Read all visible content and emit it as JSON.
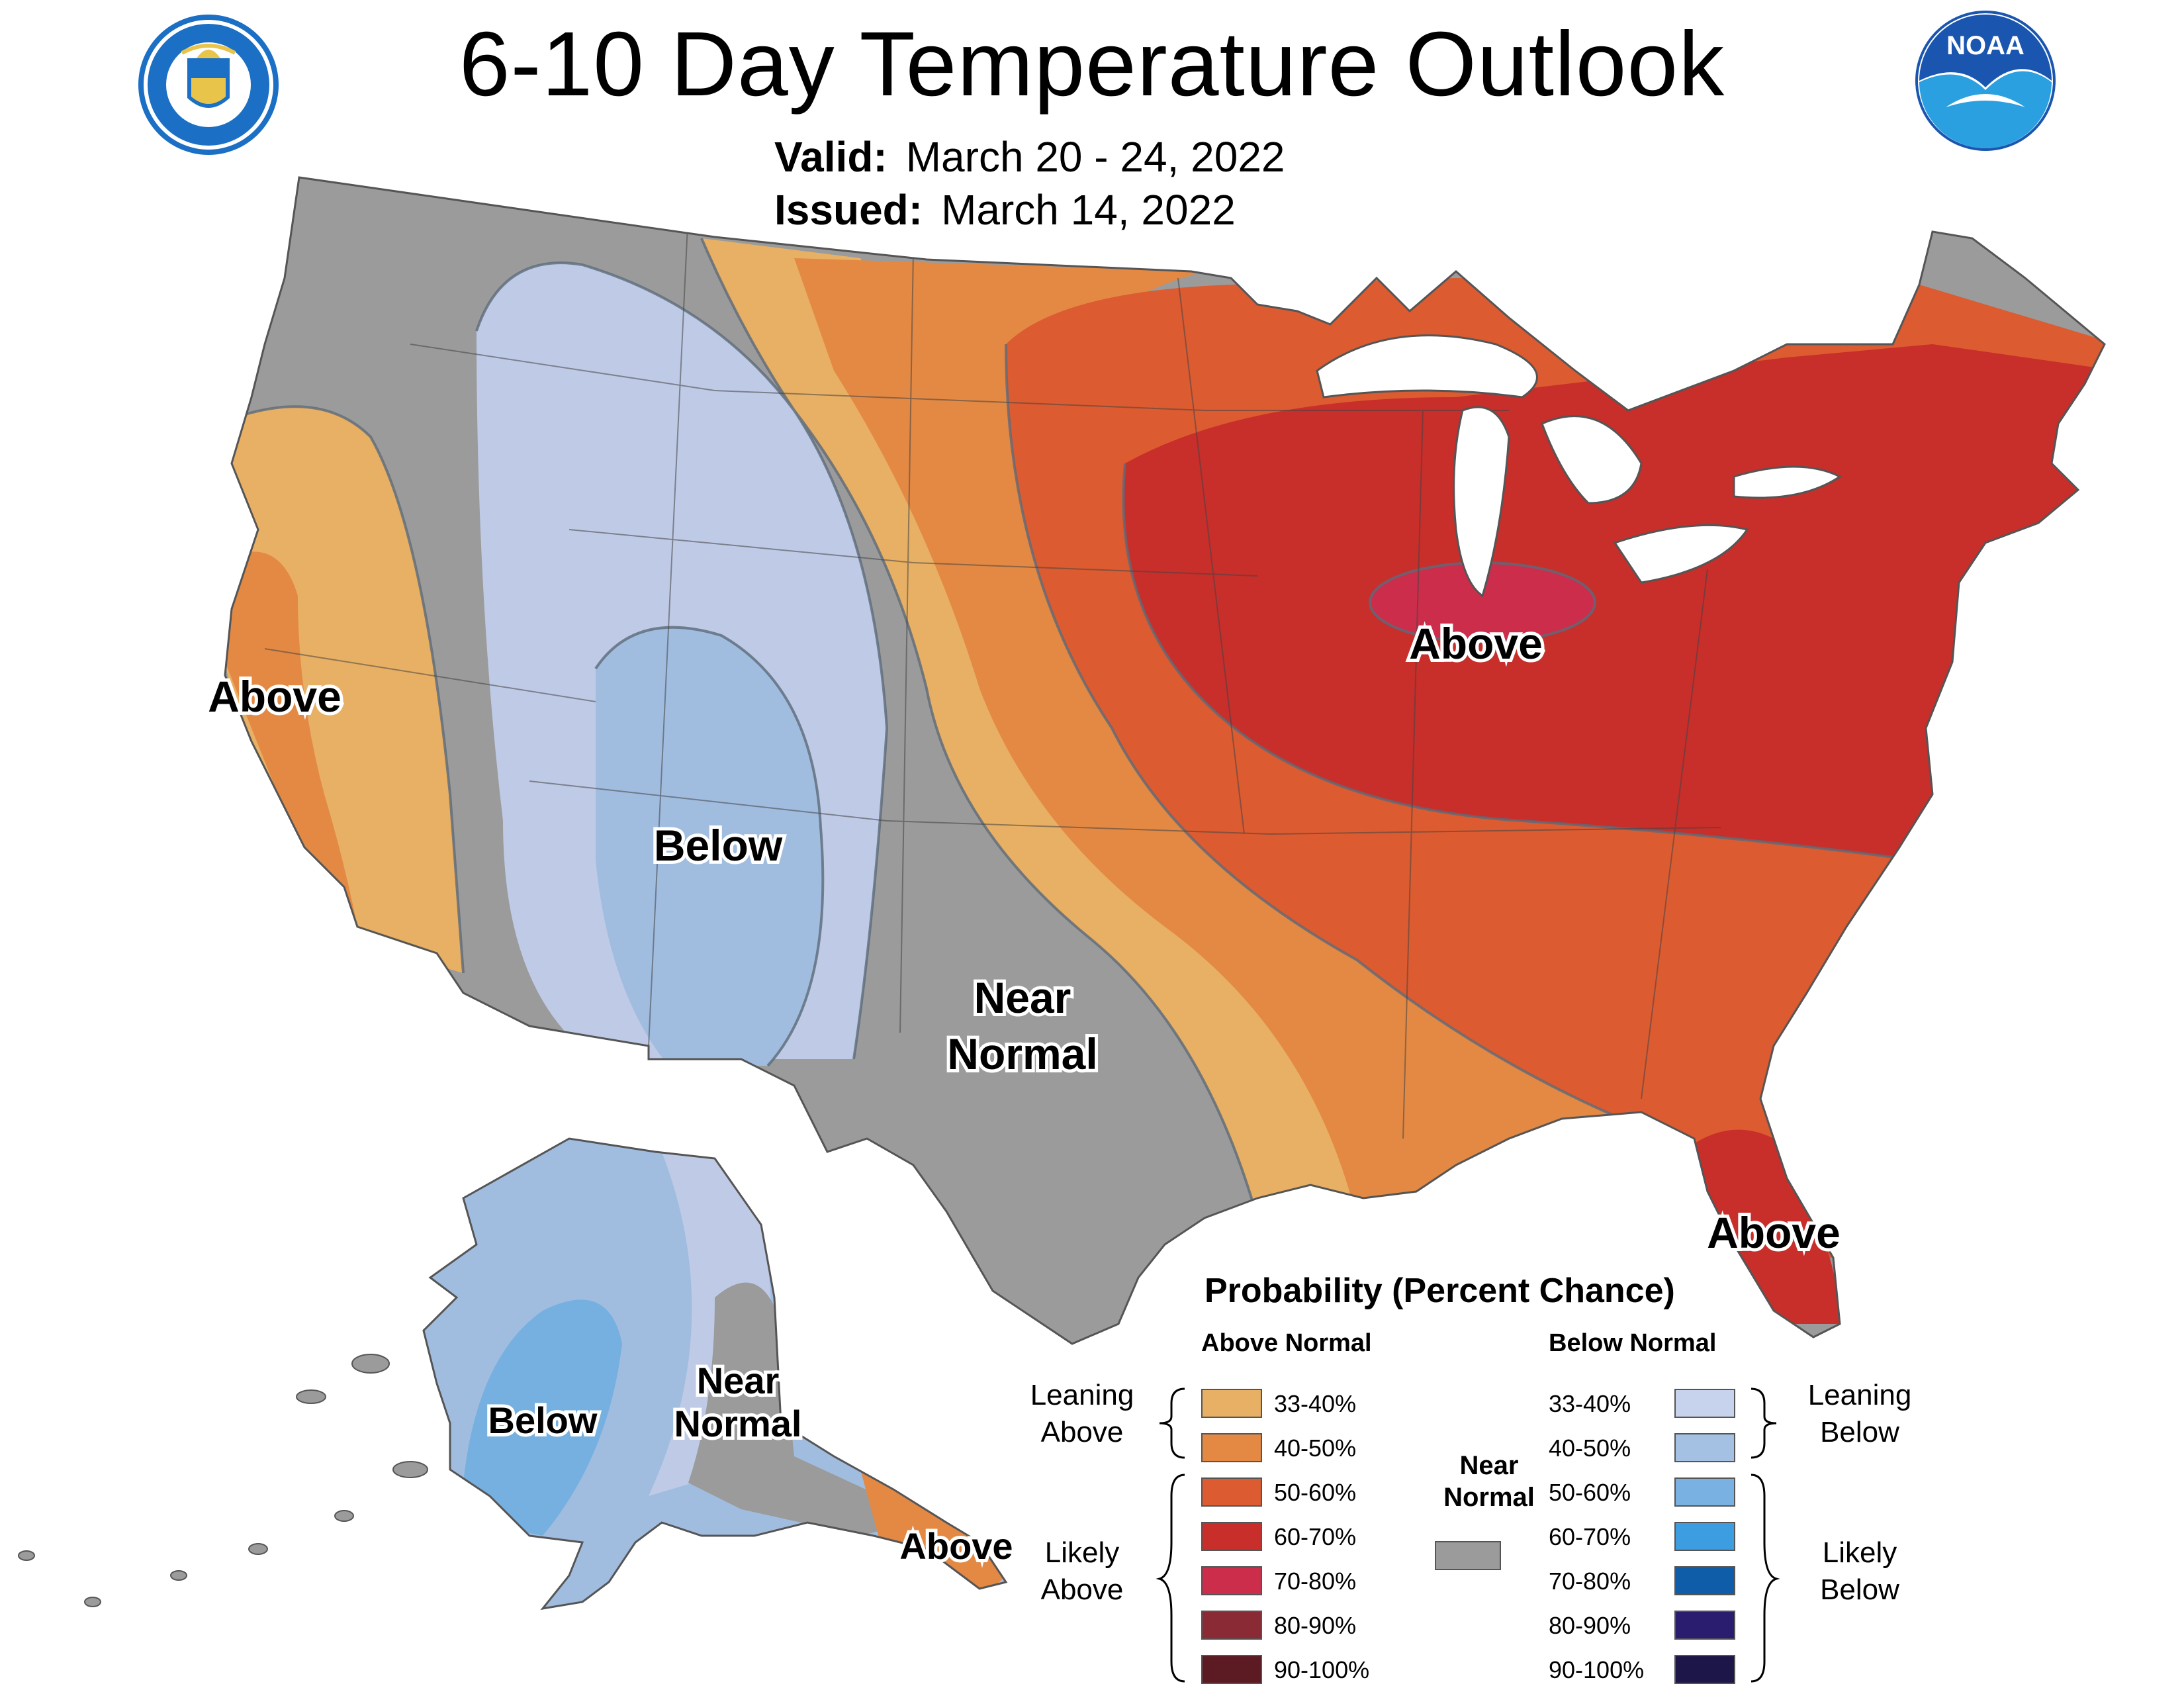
{
  "header": {
    "title": "6-10 Day Temperature Outlook",
    "valid_label": "Valid:",
    "valid_value": "March 20 - 24, 2022",
    "issued_label": "Issued:",
    "issued_value": "March 14, 2022",
    "left_logo_text": "DEPARTMENT OF COMMERCE · UNITED STATES OF AMERICA",
    "right_logo_text": "NOAA"
  },
  "map": {
    "labels": {
      "above_west": "Above",
      "below_west": "Below",
      "near_normal_line1": "Near",
      "near_normal_line2": "Normal",
      "above_east": "Above",
      "above_florida": "Above",
      "alaska_below": "Below",
      "alaska_near_line1": "Near",
      "alaska_near_line2": "Normal",
      "alaska_above": "Above"
    },
    "category_colors": {
      "above_33_40": "#e8b064",
      "above_40_50": "#e38944",
      "above_50_60": "#dc5b30",
      "above_60_70": "#c82e2a",
      "above_70_80": "#cc2d4b",
      "near_normal": "#9b9b9b",
      "below_33_40": "#bfcbe6",
      "below_40_50": "#a0bde0",
      "below_50_60": "#76b0e0"
    }
  },
  "legend": {
    "title": "Probability (Percent Chance)",
    "above_heading": "Above Normal",
    "below_heading": "Below Normal",
    "near_normal_line1": "Near",
    "near_normal_line2": "Normal",
    "near_normal_color": "#9b9b9b",
    "leaning_above_line1": "Leaning",
    "leaning_above_line2": "Above",
    "likely_above_line1": "Likely",
    "likely_above_line2": "Above",
    "leaning_below_line1": "Leaning",
    "leaning_below_line2": "Below",
    "likely_below_line1": "Likely",
    "likely_below_line2": "Below",
    "above_items": [
      {
        "label": "33-40%",
        "color": "#e8b064"
      },
      {
        "label": "40-50%",
        "color": "#e38944"
      },
      {
        "label": "50-60%",
        "color": "#dc5b30"
      },
      {
        "label": "60-70%",
        "color": "#c82e2a"
      },
      {
        "label": "70-80%",
        "color": "#cc2d4b"
      },
      {
        "label": "80-90%",
        "color": "#8a2a35"
      },
      {
        "label": "90-100%",
        "color": "#5c1a22"
      }
    ],
    "below_items": [
      {
        "label": "33-40%",
        "color": "#c7d3ec"
      },
      {
        "label": "40-50%",
        "color": "#a4c1e4"
      },
      {
        "label": "50-60%",
        "color": "#79b2e2"
      },
      {
        "label": "60-70%",
        "color": "#3c9ee0"
      },
      {
        "label": "70-80%",
        "color": "#0f5ca8"
      },
      {
        "label": "80-90%",
        "color": "#2a1c6e"
      },
      {
        "label": "90-100%",
        "color": "#1c1748"
      }
    ]
  }
}
